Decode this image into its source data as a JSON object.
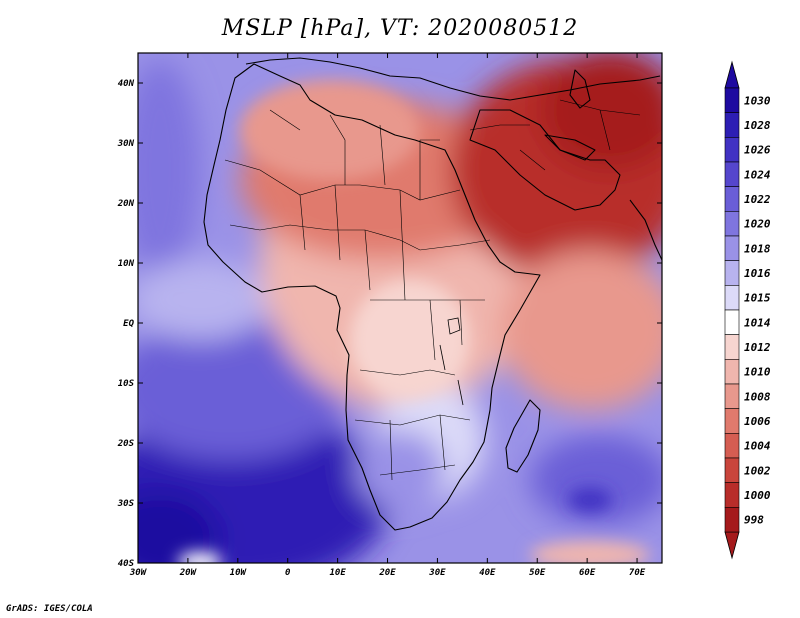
{
  "title": "MSLP [hPa], VT: 2020080512",
  "credit": "GrADS: IGES/COLA",
  "map": {
    "lon_labels": [
      "30W",
      "20W",
      "10W",
      "0",
      "10E",
      "20E",
      "30E",
      "40E",
      "50E",
      "60E",
      "70E"
    ],
    "lat_labels": [
      "40N",
      "30N",
      "20N",
      "10N",
      "EQ",
      "10S",
      "20S",
      "30S",
      "40S"
    ],
    "lon_range": [
      -30,
      75
    ],
    "lat_range": [
      -40,
      45
    ]
  },
  "colorbar": {
    "levels": [
      "1030",
      "1028",
      "1026",
      "1024",
      "1022",
      "1020",
      "1018",
      "1016",
      "1015",
      "1014",
      "1012",
      "1010",
      "1008",
      "1006",
      "1004",
      "1002",
      "1000",
      "998"
    ],
    "colors": [
      "#1e0aa0",
      "#2d1eb4",
      "#4132c3",
      "#5546cd",
      "#6a5ed7",
      "#7f75df",
      "#9a92e7",
      "#b8b3ef",
      "#dcdaf8",
      "#ffffff",
      "#f7d5d0",
      "#f0b6ae",
      "#e8988d",
      "#e07a6d",
      "#d55d52",
      "#c9453c",
      "#b82d2a",
      "#a51a1c"
    ],
    "top_arrow_color": "#1e0aa0",
    "bottom_arrow_color": "#a51a1c"
  }
}
